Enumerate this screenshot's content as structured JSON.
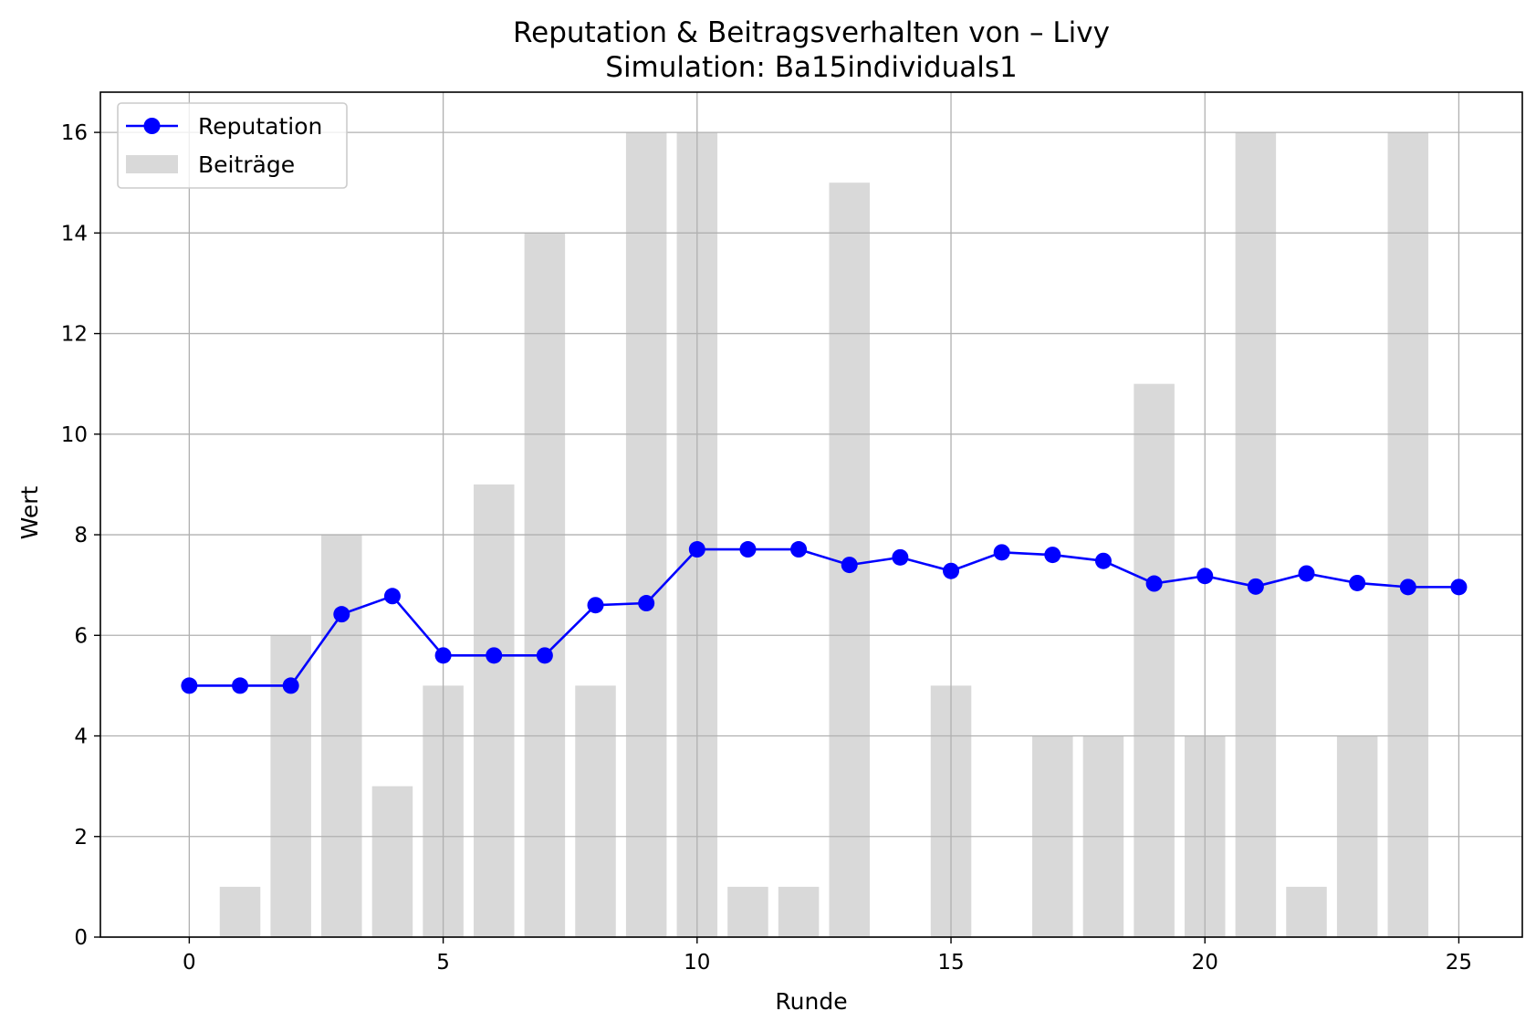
{
  "chart_data": {
    "type": "bar",
    "title": "Reputation & Beitragsverhalten von – Livy",
    "subtitle": "Simulation: Ba15individuals1",
    "xlabel": "Runde",
    "ylabel": "Wert",
    "xlim": [
      -1.75,
      26.25
    ],
    "ylim": [
      0,
      16.8
    ],
    "xticks": [
      "0",
      "5",
      "10",
      "15",
      "20",
      "25"
    ],
    "yticks": [
      "0",
      "2",
      "4",
      "6",
      "8",
      "10",
      "12",
      "14",
      "16"
    ],
    "grid": true,
    "legend_position": "upper-left",
    "series": [
      {
        "name": "Reputation",
        "kind": "line",
        "color": "#0000ff",
        "marker": "circle",
        "x": [
          0,
          1,
          2,
          3,
          4,
          5,
          6,
          7,
          8,
          9,
          10,
          11,
          12,
          13,
          14,
          15,
          16,
          17,
          18,
          19,
          20,
          21,
          22,
          23,
          24,
          25
        ],
        "values": [
          5.0,
          5.0,
          5.0,
          6.42,
          6.78,
          5.6,
          5.6,
          5.6,
          6.6,
          6.64,
          7.71,
          7.71,
          7.71,
          7.4,
          7.55,
          7.28,
          7.65,
          7.6,
          7.48,
          7.03,
          7.18,
          6.97,
          7.23,
          7.04,
          6.96,
          6.96
        ]
      },
      {
        "name": "Beiträge",
        "kind": "bar",
        "color": "#d9d9d9",
        "x": [
          0,
          1,
          2,
          3,
          4,
          5,
          6,
          7,
          8,
          9,
          10,
          11,
          12,
          13,
          14,
          15,
          16,
          17,
          18,
          19,
          20,
          21,
          22,
          23,
          24
        ],
        "values": [
          0,
          1,
          6,
          8,
          3,
          5,
          9,
          14,
          5,
          16,
          16,
          1,
          1,
          15,
          0,
          5,
          0,
          4,
          4,
          11,
          4,
          16,
          1,
          4,
          16
        ]
      }
    ]
  }
}
